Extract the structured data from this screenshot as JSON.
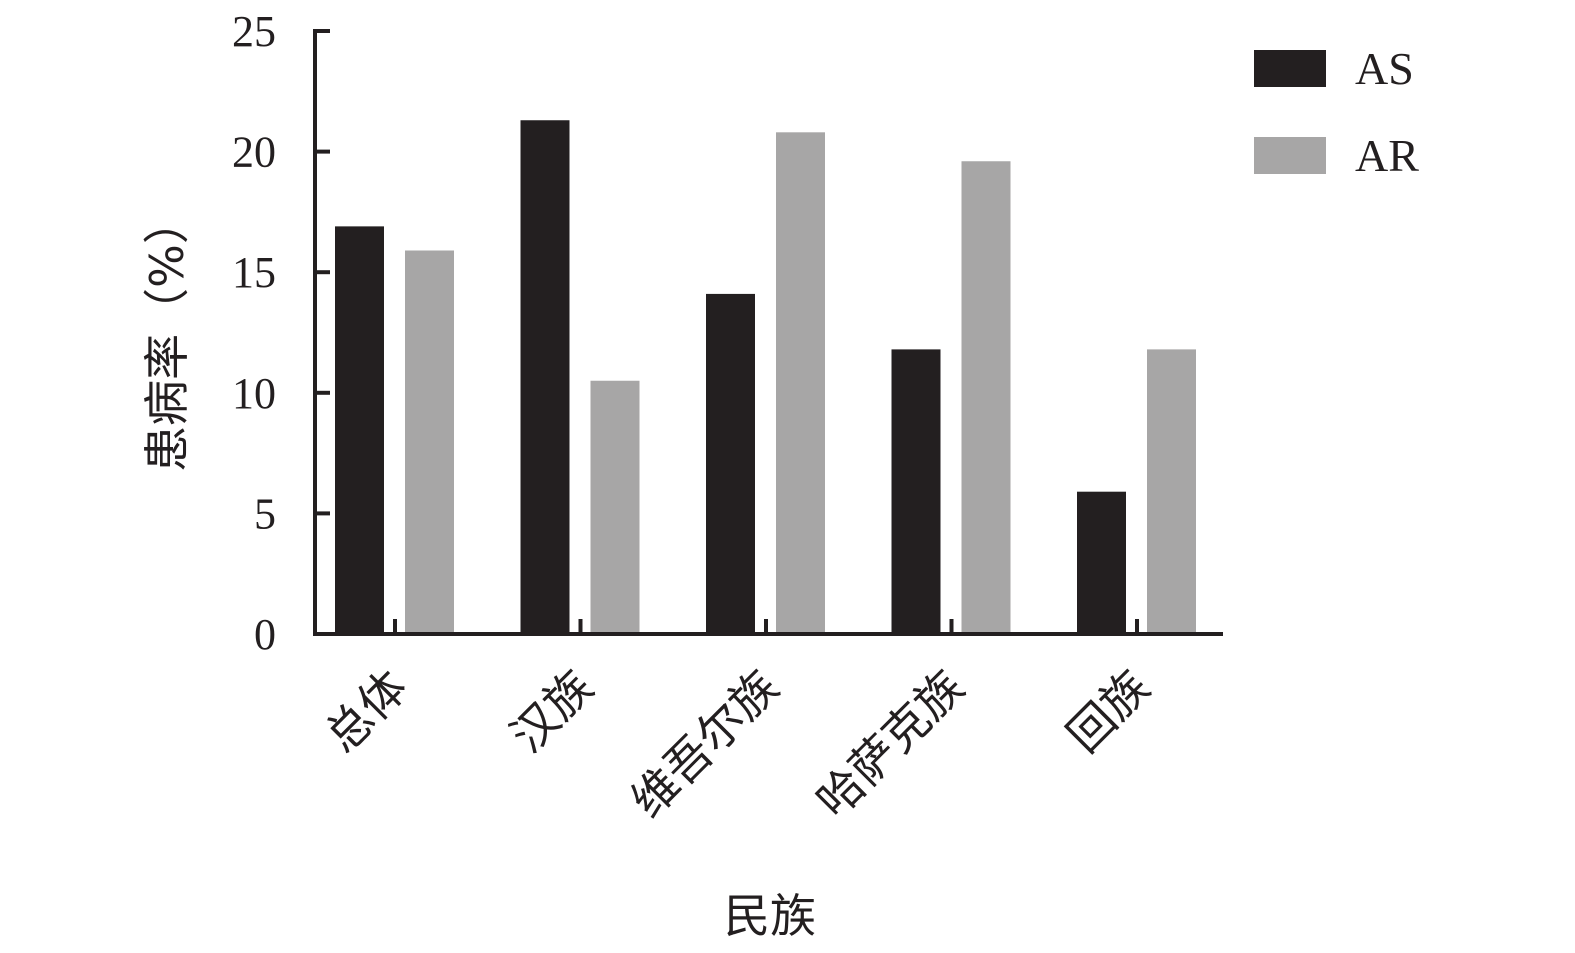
{
  "chart_data": {
    "type": "bar",
    "categories": [
      "总体",
      "汉族",
      "维吾尔族",
      "哈萨克族",
      "回族"
    ],
    "series": [
      {
        "name": "AS",
        "values": [
          16.9,
          21.3,
          14.1,
          11.8,
          5.9
        ],
        "color": "#231f20"
      },
      {
        "name": "AR",
        "values": [
          15.9,
          10.5,
          20.8,
          19.6,
          11.8
        ],
        "color": "#a7a6a6"
      }
    ],
    "xlabel": "民族",
    "ylabel": "患病率（%）",
    "ylim": [
      0,
      25
    ],
    "yticks": [
      0,
      5,
      10,
      15,
      20,
      25
    ],
    "grid": false,
    "legend_position": "top-right"
  }
}
